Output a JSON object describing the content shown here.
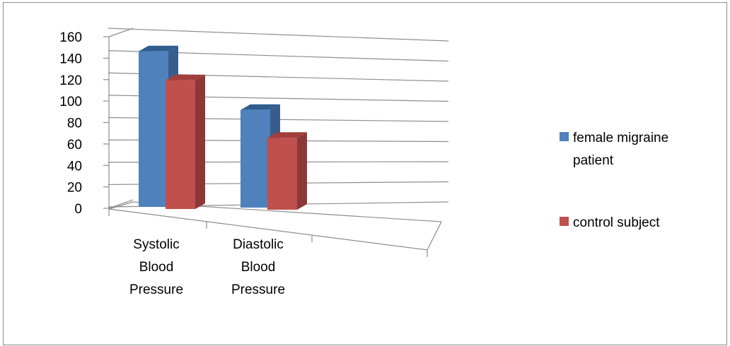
{
  "chart_data": {
    "type": "bar",
    "subtype": "3d-clustered-column",
    "title": "",
    "xlabel": "",
    "ylabel": "",
    "categories": [
      [
        "Systolic",
        "Blood",
        "Pressure"
      ],
      [
        "Diastolic",
        "Blood",
        "Pressure"
      ]
    ],
    "series": [
      {
        "name": [
          "female migraine",
          "patient"
        ],
        "values": [
          145,
          91
        ],
        "color": "#4F81BD",
        "side_color": "#385D8A",
        "top_color": "#2E5D8E"
      },
      {
        "name": [
          "control subject"
        ],
        "values": [
          120,
          67
        ],
        "color": "#C0504D",
        "side_color": "#8C3836",
        "top_color": "#A33F3C"
      }
    ],
    "ylim": [
      0,
      160
    ],
    "yticks": [
      "0",
      "20",
      "40",
      "60",
      "80",
      "100",
      "120",
      "140",
      "160"
    ],
    "grid": true,
    "legend_position": "right"
  }
}
